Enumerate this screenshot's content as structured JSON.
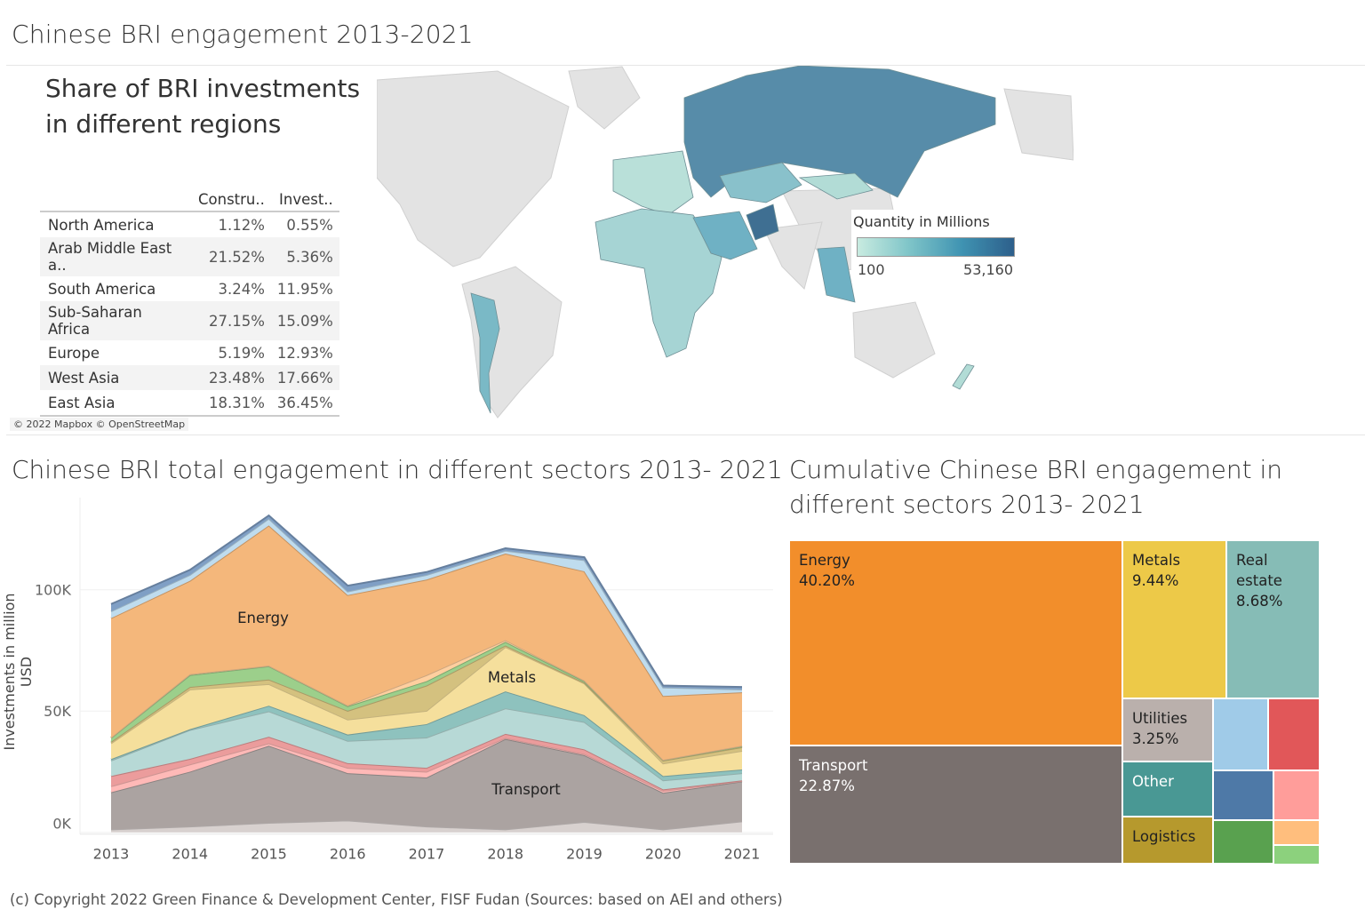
{
  "dashboard_title": "Chinese BRI engagement 2013-2021",
  "regions_panel": {
    "title": "Share of BRI investments in different regions",
    "columns": [
      "",
      "Constru..",
      "Invest.."
    ],
    "rows": [
      {
        "region": "North America",
        "construction": "1.12%",
        "investment": "0.55%"
      },
      {
        "region": "Arab Middle East a..",
        "construction": "21.52%",
        "investment": "5.36%"
      },
      {
        "region": "South America",
        "construction": "3.24%",
        "investment": "11.95%"
      },
      {
        "region": "Sub-Saharan Africa",
        "construction": "27.15%",
        "investment": "15.09%"
      },
      {
        "region": "Europe",
        "construction": "5.19%",
        "investment": "12.93%"
      },
      {
        "region": "West Asia",
        "construction": "23.48%",
        "investment": "17.66%"
      },
      {
        "region": "East Asia",
        "construction": "18.31%",
        "investment": "36.45%"
      }
    ]
  },
  "map": {
    "attribution": "© 2022 Mapbox © OpenStreetMap",
    "legend_title": "Quantity in Millions",
    "legend_min": "100",
    "legend_max": "53,160",
    "color_low": "#c8ebe0",
    "color_high": "#2d5f8b"
  },
  "chart_data": [
    {
      "type": "area",
      "stacked": true,
      "title": "Chinese BRI total engagement in different sectors 2013- 2021",
      "xlabel": "",
      "ylabel": "Investments in million USD",
      "x": [
        "2013",
        "2014",
        "2015",
        "2016",
        "2017",
        "2018",
        "2019",
        "2020",
        "2021"
      ],
      "y_ticks": [
        "0K",
        "50K",
        "100K"
      ],
      "ylim": [
        0,
        138000
      ],
      "grid": true,
      "series": [
        {
          "color": "#d8d1cf",
          "values": [
            1200,
            2400,
            3900,
            4900,
            2400,
            1200,
            4300,
            1200,
            4500
          ]
        },
        {
          "name": "Transport",
          "color": "#aba3a1",
          "values": [
            15300,
            22600,
            31800,
            19500,
            20200,
            37300,
            27500,
            15100,
            16500
          ]
        },
        {
          "color": "#ffb9b7",
          "values": [
            2500,
            3000,
            1000,
            2200,
            2400,
            400,
            500,
            800,
            200
          ]
        },
        {
          "color": "#eb9c9c",
          "values": [
            4200,
            2300,
            2700,
            1900,
            1600,
            1700,
            1900,
            600,
            200
          ]
        },
        {
          "color": "#b7d9d6",
          "values": [
            6400,
            11900,
            10500,
            9200,
            12500,
            10500,
            11300,
            3700,
            3000
          ]
        },
        {
          "color": "#8ec2be",
          "values": [
            600,
            300,
            2300,
            2600,
            5500,
            7000,
            2800,
            1800,
            1500
          ]
        },
        {
          "name": "Metals",
          "color": "#f5df9c",
          "values": [
            6500,
            16400,
            8900,
            6200,
            5500,
            18300,
            13100,
            5200,
            7700
          ]
        },
        {
          "color": "#d4c17f",
          "values": [
            600,
            1000,
            1900,
            3600,
            10400,
            600,
            300,
            1200,
            1500
          ]
        },
        {
          "color": "#9ccf8b",
          "values": [
            1600,
            4900,
            5500,
            1900,
            1800,
            1500,
            600,
            200,
            400
          ]
        },
        {
          "color": "#ffcf9f",
          "values": [
            200,
            400,
            200,
            300,
            2500,
            700,
            300,
            100,
            200
          ]
        },
        {
          "name": "Energy",
          "color": "#f4b77b",
          "values": [
            49200,
            38500,
            57800,
            45500,
            39400,
            35700,
            45000,
            26300,
            22000
          ]
        },
        {
          "color": "#bfdcee",
          "values": [
            2800,
            2400,
            2800,
            1500,
            1900,
            1200,
            4600,
            3500,
            1200
          ]
        },
        {
          "color": "#7f9fc5",
          "values": [
            3000,
            2100,
            1300,
            2400,
            1200,
            1000,
            1200,
            800,
            1000
          ]
        }
      ]
    },
    {
      "type": "treemap",
      "title": "Cumulative Chinese BRI engagement in different sectors 2013- 2021",
      "cells": [
        {
          "label": "Energy",
          "share": "40.20%",
          "color": "#f28e2b",
          "text_color": "#222"
        },
        {
          "label": "Transport",
          "share": "22.87%",
          "color": "#79706e",
          "text_color": "#fff"
        },
        {
          "label": "Metals",
          "share": "9.44%",
          "color": "#edc948",
          "text_color": "#222"
        },
        {
          "label": "Real estate",
          "share": "8.68%",
          "color": "#86bcb6",
          "text_color": "#222"
        },
        {
          "label": "Utilities",
          "share": "3.25%",
          "color": "#bab0ac",
          "text_color": "#222"
        },
        {
          "label": "Other",
          "share": "",
          "color": "#499894",
          "text_color": "#fff"
        },
        {
          "label": "Logistics",
          "share": "",
          "color": "#b6992d",
          "text_color": "#222"
        },
        {
          "label": "",
          "share": "",
          "color": "#a0cbe8",
          "text_color": "#222"
        },
        {
          "label": "",
          "share": "",
          "color": "#e15759",
          "text_color": "#222"
        },
        {
          "label": "",
          "share": "",
          "color": "#4e79a7",
          "text_color": "#222"
        },
        {
          "label": "",
          "share": "",
          "color": "#ff9d9a",
          "text_color": "#222"
        },
        {
          "label": "",
          "share": "",
          "color": "#59a14f",
          "text_color": "#222"
        },
        {
          "label": "",
          "share": "",
          "color": "#ffbe7d",
          "text_color": "#222"
        },
        {
          "label": "",
          "share": "",
          "color": "#8cd17d",
          "text_color": "#222"
        }
      ]
    }
  ],
  "footer": "(c) Copyright 2022 Green Finance & Development Center, FISF Fudan (Sources: based on AEI and others)"
}
